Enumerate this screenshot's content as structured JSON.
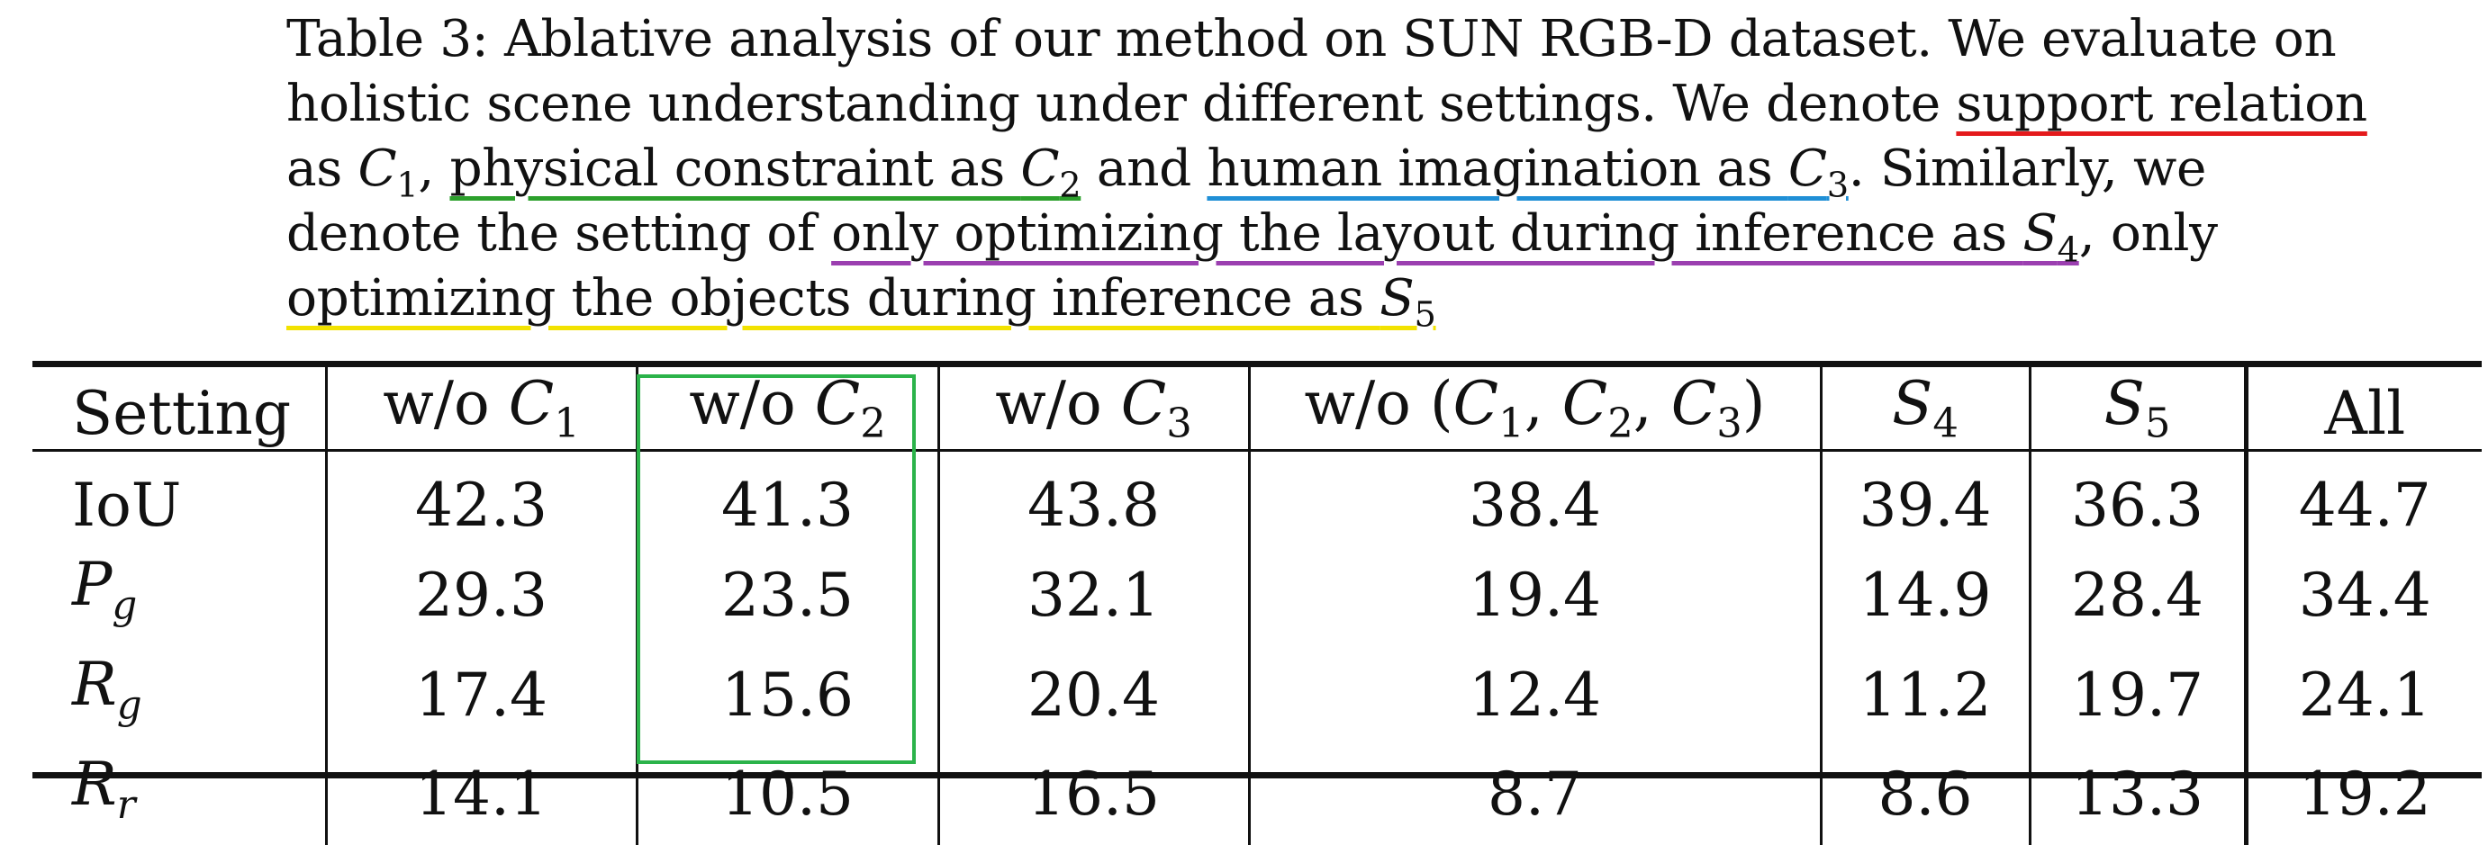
{
  "caption": {
    "line1": "Table 3: Ablative analysis of our method on SUN RGB-D dataset. We evaluate on",
    "line2_pre": "holistic scene understanding under different settings. We denote ",
    "line2_ul": "support relation",
    "line3_a": "as ",
    "line3_c1": "C",
    "line3_c1sub": "1",
    "line3_b": ", ",
    "line3_ul_green": "physical constraint as ",
    "line3_c2": "C",
    "line3_c2sub": "2",
    "line3_c": " and ",
    "line3_ul_blue": "human imagination as ",
    "line3_c3": "C",
    "line3_c3sub": "3",
    "line3_d": ". Similarly, we",
    "line4_a": "denote the setting of ",
    "line4_ul_purple": "only optimizing the layout during inference as ",
    "line4_s4": "S",
    "line4_s4sub": "4",
    "line4_b": ", only",
    "line5_ul_yellow": "optimizing the objects during inference as ",
    "line5_s5": "S",
    "line5_s5sub": "5"
  },
  "table": {
    "headers": {
      "setting": "Setting",
      "wo": "w/o ",
      "c": "C",
      "sub1": "1",
      "sub2": "2",
      "sub3": "3",
      "wo_all_open": "w/o (",
      "comma": ", ",
      "close": ")",
      "s": "S",
      "sub4": "4",
      "sub5": "5",
      "all": "All"
    },
    "rows": [
      {
        "label": "IoU",
        "values": [
          "42.3",
          "41.3",
          "43.8",
          "38.4",
          "39.4",
          "36.3",
          "44.7"
        ]
      },
      {
        "label_main": "P",
        "label_sub": "g",
        "values": [
          "29.3",
          "23.5",
          "32.1",
          "19.4",
          "14.9",
          "28.4",
          "34.4"
        ]
      },
      {
        "label_main": "R",
        "label_sub": "g",
        "values": [
          "17.4",
          "15.6",
          "20.4",
          "12.4",
          "11.2",
          "19.7",
          "24.1"
        ]
      },
      {
        "label_main": "R",
        "label_sub": "r",
        "values": [
          "14.1",
          "10.5",
          "16.5",
          "8.7",
          "8.6",
          "13.3",
          "19.2"
        ]
      }
    ]
  },
  "colors": {
    "underline_support_relation": "#e41a1c",
    "underline_physical_constraint": "#2ca02c",
    "underline_human_imagination": "#1f8fd6",
    "underline_layout": "#9b3fb0",
    "underline_objects": "#f2e200",
    "highlight_box": "#2bb34a"
  }
}
